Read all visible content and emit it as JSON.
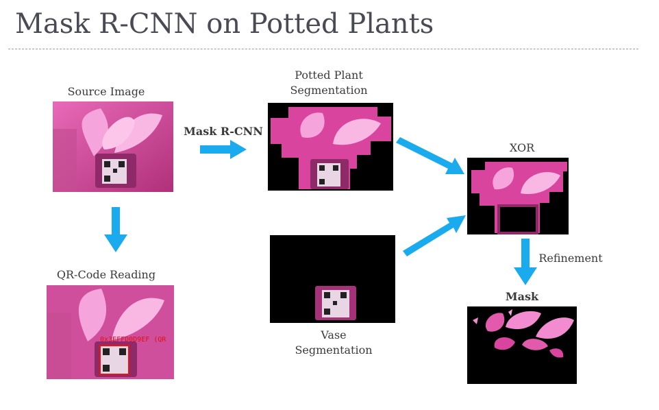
{
  "title": "Mask R-CNN on Potted Plants",
  "steps": {
    "source": "Source Image",
    "qr": "QR-Code Reading",
    "qr_overlay": "0x3EFFD0D9EF (QR",
    "mask_rcnn": "Mask R-CNN",
    "plant_seg_line1": "Potted Plant",
    "plant_seg_line2": "Segmentation",
    "vase_seg_line1": "Vase",
    "vase_seg_line2": "Segmentation",
    "xor": "XOR",
    "refinement": "Refinement",
    "mask": "Mask"
  },
  "colors": {
    "arrow": "#1aaaee",
    "magenta": "#d9459e",
    "pink_light": "#f28bd0",
    "black": "#000000"
  }
}
